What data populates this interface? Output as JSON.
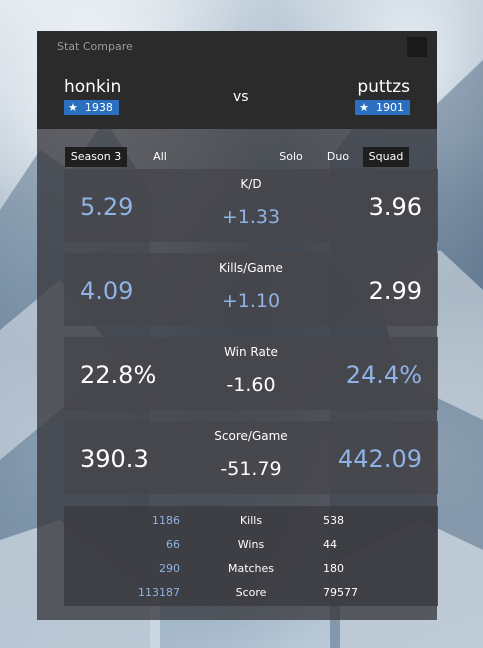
{
  "window": {
    "title": "Stat Compare"
  },
  "player1": {
    "name": "honkin",
    "rating": "1938"
  },
  "player2": {
    "name": "puttzs",
    "rating": "1901"
  },
  "vs_label": "vs",
  "filters": {
    "season": "Season 3",
    "all": "All",
    "solo": "Solo",
    "duo": "Duo",
    "squad": "Squad"
  },
  "stats": [
    {
      "title": "K/D",
      "left": "5.29",
      "diff": "+1.33",
      "right": "3.96"
    },
    {
      "title": "Kills/Game",
      "left": "4.09",
      "diff": "+1.10",
      "right": "2.99"
    },
    {
      "title": "Win Rate",
      "left": "22.8%",
      "diff": "-1.60",
      "right": "24.4%"
    },
    {
      "title": "Score/Game",
      "left": "390.3",
      "diff": "-51.79",
      "right": "442.09"
    }
  ],
  "summary": [
    {
      "label": "Kills",
      "left": "1186",
      "right": "538"
    },
    {
      "label": "Wins",
      "left": "66",
      "right": "44"
    },
    {
      "label": "Matches",
      "left": "290",
      "right": "180"
    },
    {
      "label": "Score",
      "left": "113187",
      "right": "79577"
    }
  ],
  "colors": {
    "accent": "#2a6fc0",
    "highlight": "#8fb3e6",
    "titlebar": "#2b2b2b"
  },
  "icons": {
    "rating": "star-icon",
    "close": "close-icon"
  }
}
